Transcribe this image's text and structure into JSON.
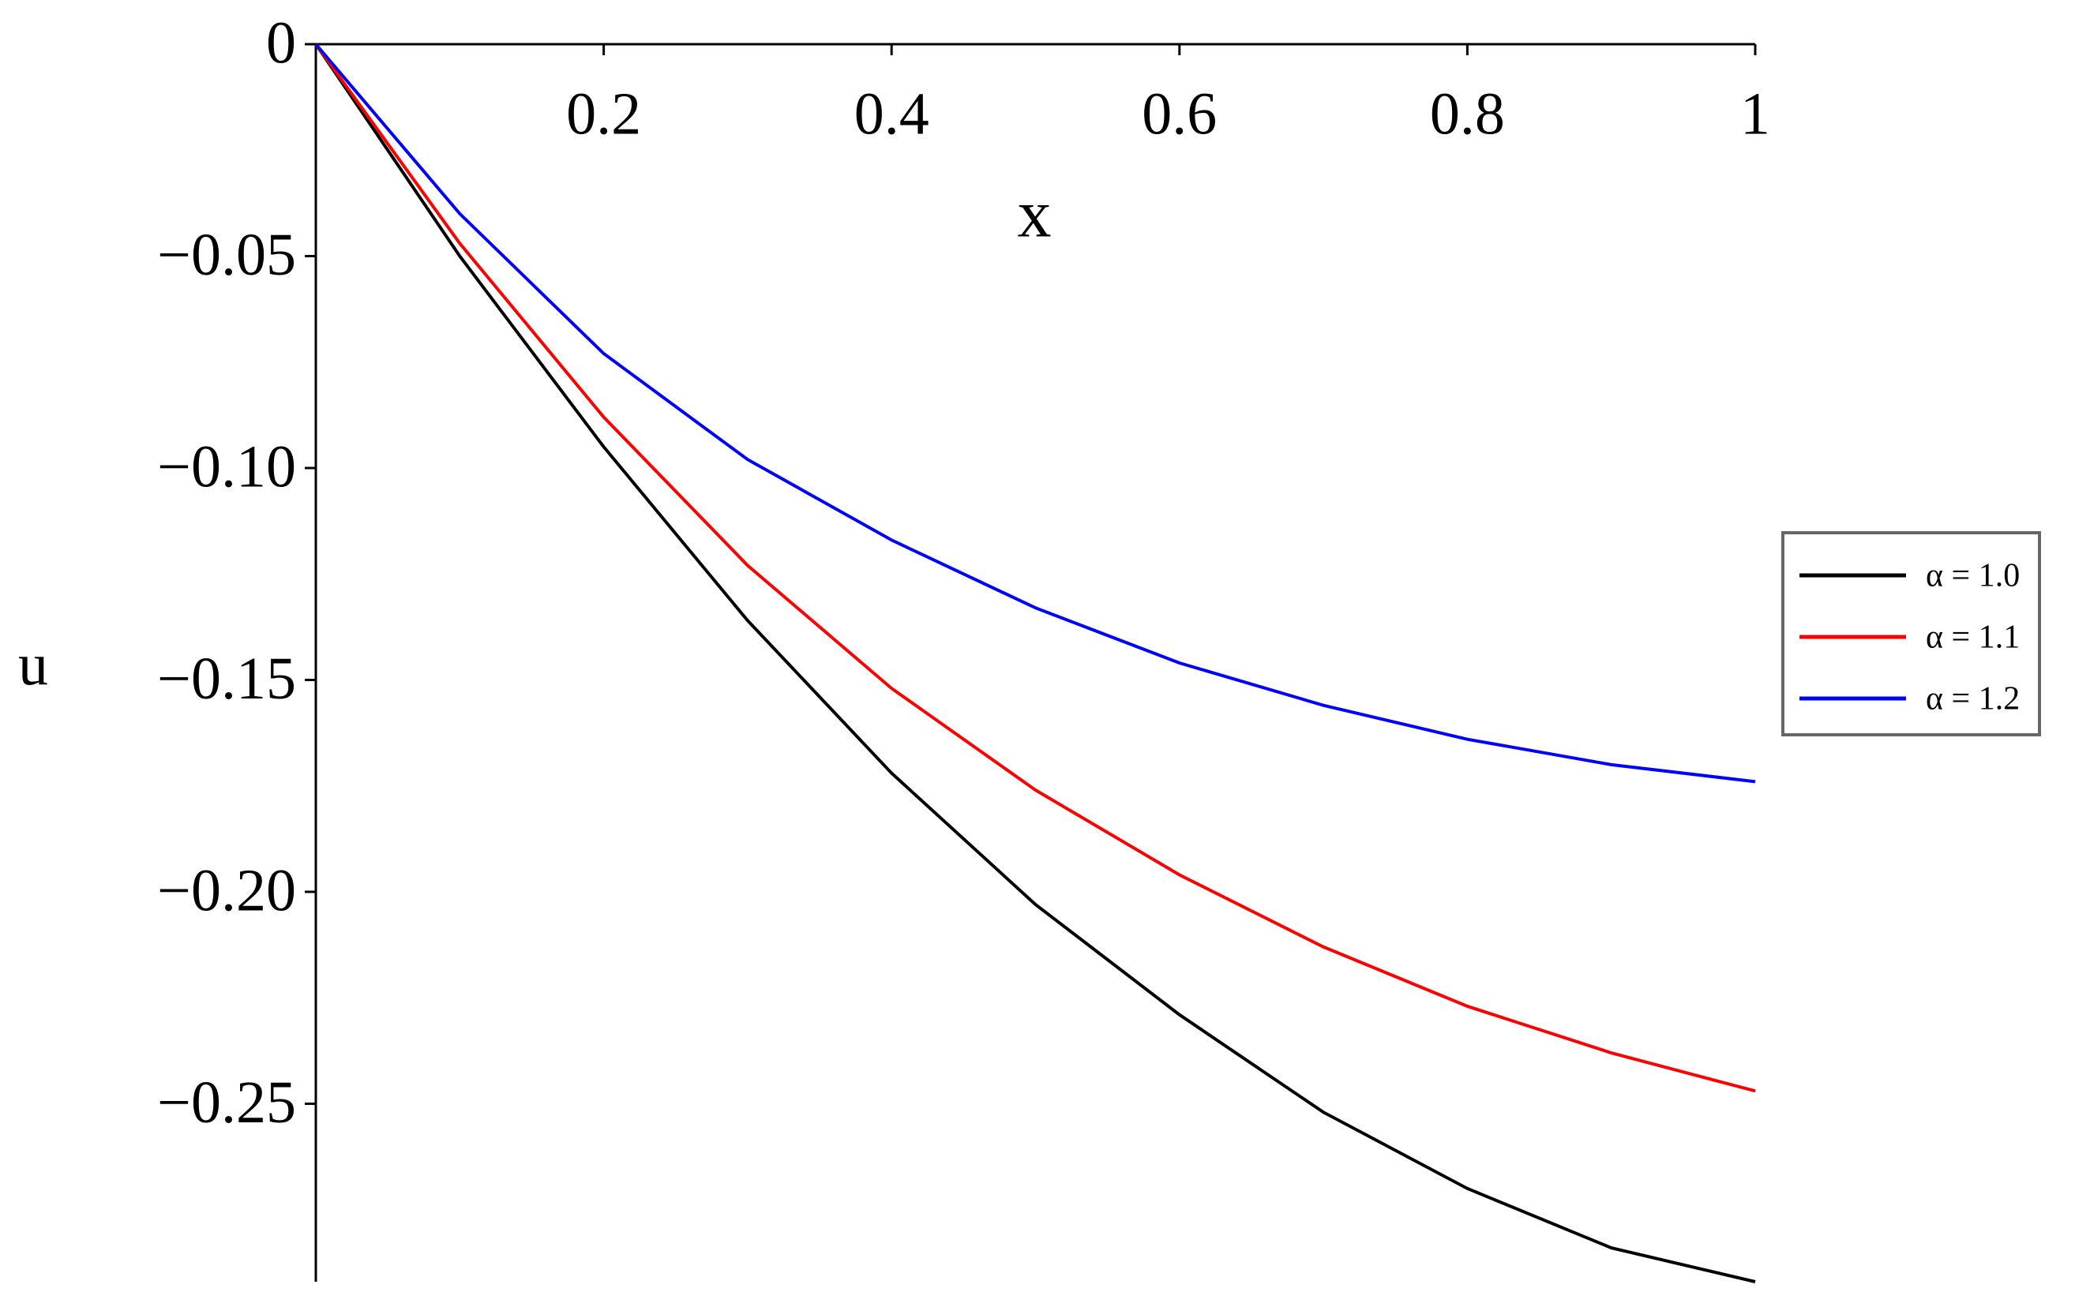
{
  "chart_data": {
    "type": "line",
    "x_label": "x",
    "y_label": "u",
    "x": [
      0,
      0.1,
      0.2,
      0.3,
      0.4,
      0.5,
      0.6,
      0.7,
      0.8,
      0.9,
      1
    ],
    "series": [
      {
        "name": "α = 1.0",
        "color": "#000000",
        "values": [
          0,
          -0.05,
          -0.095,
          -0.136,
          -0.172,
          -0.203,
          -0.229,
          -0.252,
          -0.27,
          -0.284,
          -0.292
        ]
      },
      {
        "name": "α = 1.1",
        "color": "#ff0000",
        "values": [
          0,
          -0.047,
          -0.088,
          -0.123,
          -0.152,
          -0.176,
          -0.196,
          -0.213,
          -0.227,
          -0.238,
          -0.247
        ]
      },
      {
        "name": "α = 1.2",
        "color": "#0000ff",
        "values": [
          0,
          -0.04,
          -0.073,
          -0.098,
          -0.117,
          -0.133,
          -0.146,
          -0.156,
          -0.164,
          -0.17,
          -0.174
        ]
      }
    ],
    "xlim": [
      0,
      1
    ],
    "ylim": [
      -0.292,
      0
    ],
    "xticks": [
      0.2,
      0.4,
      0.6,
      0.8,
      1
    ],
    "yticks": [
      0,
      {
        "value": -0.05,
        "label": "−0.05"
      },
      {
        "value": -0.1,
        "label": "−0.10"
      },
      {
        "value": -0.15,
        "label": "−0.15"
      },
      {
        "value": -0.2,
        "label": "−0.20"
      },
      {
        "value": -0.25,
        "label": "−0.25"
      }
    ],
    "legend": "right"
  }
}
